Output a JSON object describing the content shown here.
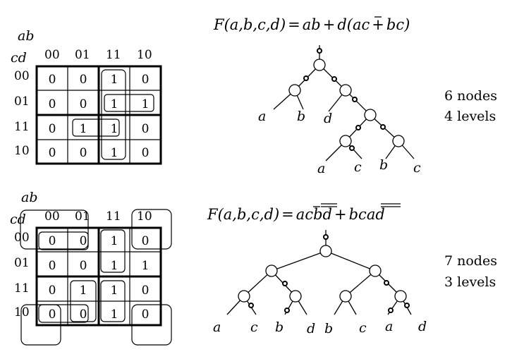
{
  "diagrams": [
    {
      "id": "top",
      "kmap": {
        "row_var": "ab",
        "col_var": "cd",
        "col_labels": [
          "00",
          "01",
          "11",
          "10"
        ],
        "row_labels": [
          "00",
          "01",
          "11",
          "10"
        ],
        "cells": [
          [
            "0",
            "0",
            "1",
            "0"
          ],
          [
            "0",
            "0",
            "1",
            "1"
          ],
          [
            "0",
            "1",
            "1",
            "0"
          ],
          [
            "0",
            "0",
            "1",
            "0"
          ]
        ]
      },
      "formula": "F(a,b,c,d) = ab + d(ac̄ + bc)",
      "tree_leaves": [
        "a",
        "b",
        "d",
        "a",
        "c",
        "b",
        "c"
      ],
      "stats": [
        "6 nodes",
        "4 levels"
      ]
    },
    {
      "id": "bottom",
      "kmap": {
        "row_var": "ab",
        "col_var": "cd",
        "col_labels": [
          "00",
          "01",
          "11",
          "10"
        ],
        "row_labels": [
          "00",
          "01",
          "11",
          "10"
        ],
        "cells": [
          [
            "0",
            "0",
            "1",
            "0"
          ],
          [
            "0",
            "0",
            "1",
            "1"
          ],
          [
            "0",
            "1",
            "1",
            "0"
          ],
          [
            "0",
            "0",
            "1",
            "0"
          ]
        ]
      },
      "formula": "F(a,b,c,d) = ac̄·b̄d̄̄ + bc·āḏ̄",
      "tree_leaves": [
        "a",
        "c",
        "b",
        "d",
        "b",
        "c",
        "a",
        "d"
      ],
      "stats": [
        "7 nodes",
        "3 levels"
      ]
    }
  ],
  "formula_text": {
    "top": {
      "head": "F",
      "args": "(a,b,c,d)",
      "eq": "=",
      "t1": "ab",
      "plus1": "+",
      "t2": "d(a",
      "t3": "c",
      "plus2": "+",
      "t4": "bc)"
    },
    "bottom": {
      "head": "F",
      "args": "(a,b,c,d)",
      "eq": "=",
      "t1": "a",
      "t2": "c",
      "t3": "b",
      "t4": "d",
      "plus": "+",
      "t5": "bc",
      "t6": "a",
      "t7": "d"
    }
  }
}
